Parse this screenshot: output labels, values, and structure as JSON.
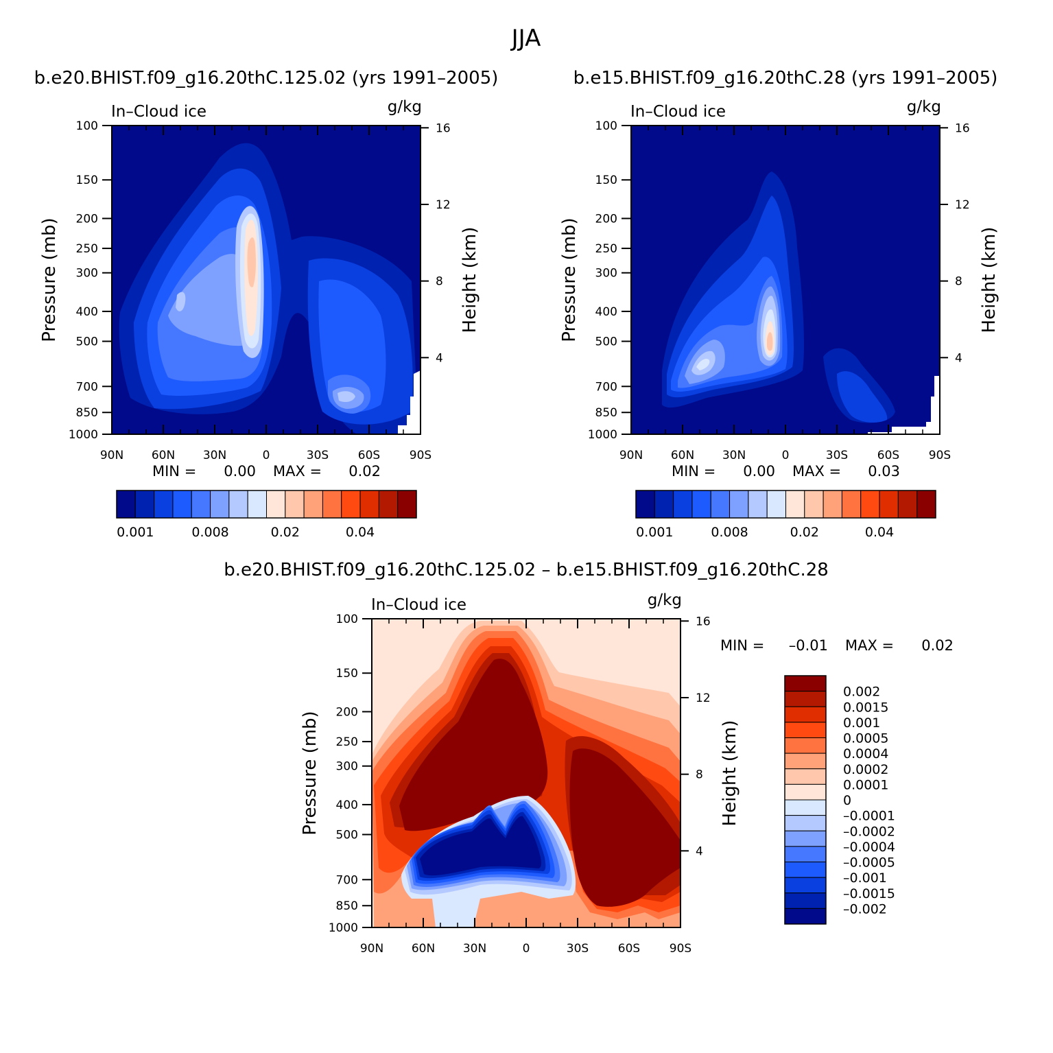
{
  "figure": {
    "title": "JJA",
    "diff_title": "b.e20.BHIST.f09_g16.20thC.125.02 – b.e15.BHIST.f09_g16.20thC.28"
  },
  "chart_data": [
    {
      "type": "heatmap",
      "title": "b.e20.BHIST.f09_g16.20thC.125.02 (yrs 1991–2005)",
      "variable": "In–Cloud ice",
      "units": "g/kg",
      "xlabel": "",
      "ylabel": "Pressure (mb)",
      "y2label": "Height (km)",
      "x_ticks": [
        "90N",
        "60N",
        "30N",
        "0",
        "30S",
        "60S",
        "90S"
      ],
      "y_ticks": [
        "100",
        "150",
        "200",
        "250",
        "300",
        "400",
        "500",
        "700",
        "850",
        "1000"
      ],
      "y2_ticks": [
        "16",
        "12",
        "8",
        "4"
      ],
      "min_label": "MIN =",
      "min_value": "0.00",
      "max_label": "MAX =",
      "max_value": "0.02",
      "colorbar_labels": [
        "0.001",
        "0.008",
        "0.02",
        "0.04"
      ],
      "colors": [
        "#000a8a",
        "#0022b0",
        "#0a3fe0",
        "#1e5bff",
        "#4577ff",
        "#7ea1ff",
        "#b3c9ff",
        "#d9e7ff",
        "#ffe6d9",
        "#ffc8ad",
        "#ffa27a",
        "#ff7340",
        "#ff4a12",
        "#e02e00",
        "#b31800",
        "#8a0000"
      ]
    },
    {
      "type": "heatmap",
      "title": "b.e15.BHIST.f09_g16.20thC.28 (yrs 1991–2005)",
      "variable": "In–Cloud ice",
      "units": "g/kg",
      "xlabel": "",
      "ylabel": "Pressure (mb)",
      "y2label": "Height (km)",
      "x_ticks": [
        "90N",
        "60N",
        "30N",
        "0",
        "30S",
        "60S",
        "90S"
      ],
      "y_ticks": [
        "100",
        "150",
        "200",
        "250",
        "300",
        "400",
        "500",
        "700",
        "850",
        "1000"
      ],
      "y2_ticks": [
        "16",
        "12",
        "8",
        "4"
      ],
      "min_label": "MIN =",
      "min_value": "0.00",
      "max_label": "MAX =",
      "max_value": "0.03",
      "colorbar_labels": [
        "0.001",
        "0.008",
        "0.02",
        "0.04"
      ],
      "colors": [
        "#000a8a",
        "#0022b0",
        "#0a3fe0",
        "#1e5bff",
        "#4577ff",
        "#7ea1ff",
        "#b3c9ff",
        "#d9e7ff",
        "#ffe6d9",
        "#ffc8ad",
        "#ffa27a",
        "#ff7340",
        "#ff4a12",
        "#e02e00",
        "#b31800",
        "#8a0000"
      ]
    },
    {
      "type": "heatmap",
      "title": "b.e20.BHIST.f09_g16.20thC.125.02 – b.e15.BHIST.f09_g16.20thC.28",
      "variable": "In–Cloud ice",
      "units": "g/kg",
      "xlabel": "",
      "ylabel": "Pressure (mb)",
      "y2label": "Height (km)",
      "x_ticks": [
        "90N",
        "60N",
        "30N",
        "0",
        "30S",
        "60S",
        "90S"
      ],
      "y_ticks": [
        "100",
        "150",
        "200",
        "250",
        "300",
        "400",
        "500",
        "700",
        "850",
        "1000"
      ],
      "y2_ticks": [
        "16",
        "12",
        "8",
        "4"
      ],
      "min_label": "MIN =",
      "min_value": "–0.01",
      "max_label": "MAX =",
      "max_value": "0.02",
      "colorbar_labels": [
        "0.002",
        "0.0015",
        "0.001",
        "0.0005",
        "0.0004",
        "0.0002",
        "0.0001",
        "0",
        "–0.0001",
        "–0.0002",
        "–0.0004",
        "–0.0005",
        "–0.001",
        "–0.0015",
        "–0.002"
      ],
      "colors": [
        "#8a0000",
        "#b31800",
        "#e02e00",
        "#ff4a12",
        "#ff7340",
        "#ffa27a",
        "#ffc8ad",
        "#ffe6d9",
        "#d9e7ff",
        "#b3c9ff",
        "#7ea1ff",
        "#4577ff",
        "#1e5bff",
        "#0a3fe0",
        "#0022b0",
        "#000a8a"
      ]
    }
  ]
}
